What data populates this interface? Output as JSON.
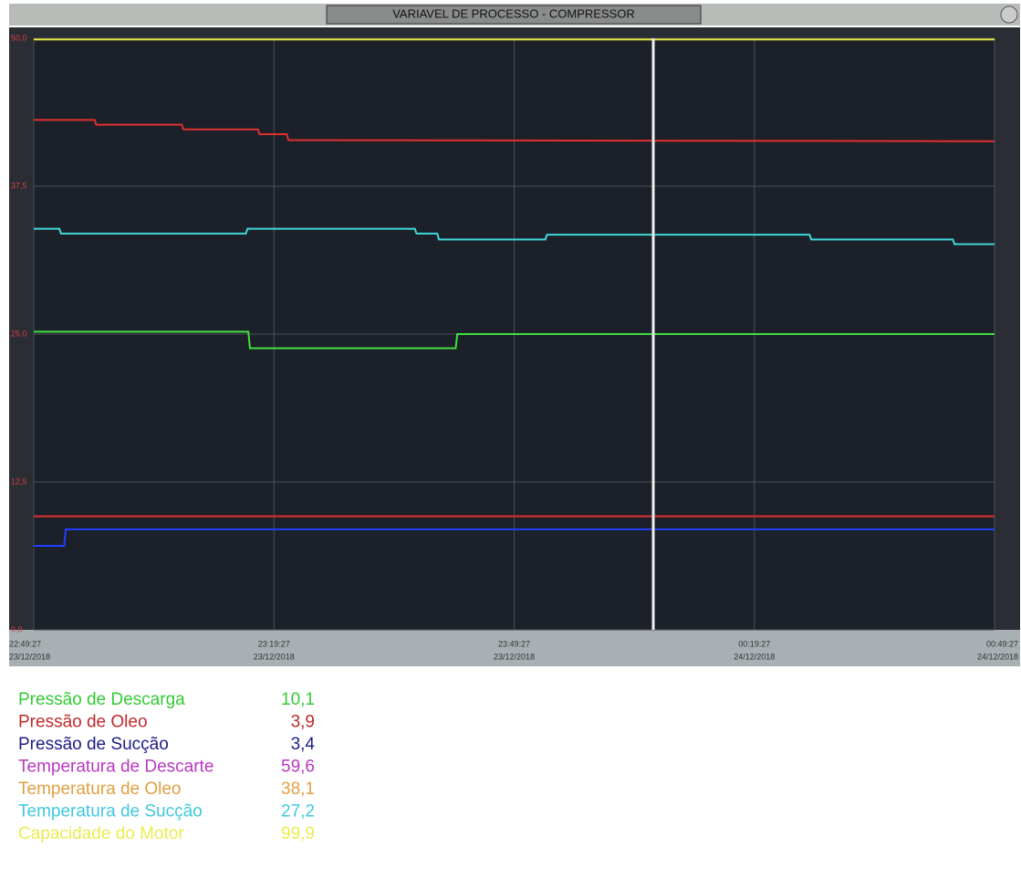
{
  "chart_data": {
    "type": "line",
    "title": "VARIAVEL DE PROCESSO - COMPRESSOR",
    "xlim": [
      0,
      120
    ],
    "ylim": [
      0,
      50
    ],
    "xticks": [
      {
        "value": 0,
        "label": "22:49:27",
        "date": "23/12/2018"
      },
      {
        "value": 30,
        "label": "23:19:27",
        "date": "23/12/2018"
      },
      {
        "value": 60,
        "label": "23:49:27",
        "date": "23/12/2018"
      },
      {
        "value": 90,
        "label": "00:19:27",
        "date": "24/12/2018"
      },
      {
        "value": 120,
        "label": "00:49:27",
        "date": "24/12/2018"
      }
    ],
    "yticks": [
      {
        "value": 0,
        "label": "0,0"
      },
      {
        "value": 12.5,
        "label": "12,5"
      },
      {
        "value": 25,
        "label": "25,0"
      },
      {
        "value": 37.5,
        "label": "37,5"
      },
      {
        "value": 50,
        "label": "50,0"
      }
    ],
    "grid": true,
    "series": [
      {
        "color": "#e8e840",
        "x": [
          0,
          120
        ],
        "values": [
          49.9,
          49.9
        ]
      },
      {
        "color": "#e03030",
        "x": [
          0,
          7.6,
          7.8,
          18.5,
          18.7,
          28,
          28.2,
          31.6,
          31.8,
          120
        ],
        "values": [
          43.1,
          43.1,
          42.7,
          42.7,
          42.3,
          42.3,
          41.9,
          41.9,
          41.4,
          41.3
        ]
      },
      {
        "color": "#40d8d8",
        "x": [
          0,
          3.2,
          3.4,
          26.5,
          26.7,
          47.6,
          47.8,
          50.4,
          50.6,
          63.9,
          64.1,
          96.9,
          97.1,
          114.8,
          115,
          120
        ],
        "values": [
          33.9,
          33.9,
          33.5,
          33.5,
          33.9,
          33.9,
          33.5,
          33.5,
          33.0,
          33.0,
          33.4,
          33.4,
          33.0,
          33.0,
          32.6,
          32.6
        ]
      },
      {
        "color": "#40e040",
        "x": [
          0,
          26.8,
          27,
          52.7,
          52.9,
          120
        ],
        "values": [
          25.2,
          25.2,
          23.8,
          23.8,
          25.0,
          25.0
        ]
      },
      {
        "color": "#e03030",
        "x": [
          0,
          120
        ],
        "values": [
          9.6,
          9.6
        ]
      },
      {
        "color": "#2040ff",
        "x": [
          0,
          3.8,
          4,
          120
        ],
        "values": [
          7.1,
          7.1,
          8.5,
          8.5
        ]
      }
    ]
  },
  "readout": [
    {
      "name": "Pressão de Descarga",
      "color": "#34c934",
      "value": 10.1,
      "label": "10,1"
    },
    {
      "name": "Pressão de Oleo",
      "color": "#c0282a",
      "value": 3.9,
      "label": "3,9"
    },
    {
      "name": "Pressão de Sucção",
      "color": "#1c1c88",
      "value": 3.4,
      "label": "3,4"
    },
    {
      "name": "Temperatura de Descarte",
      "color": "#b838c0",
      "value": 59.6,
      "label": "59,6"
    },
    {
      "name": "Temperatura de Oleo",
      "color": "#e0a040",
      "value": 38.1,
      "label": "38,1"
    },
    {
      "name": "Temperatura de Sucção",
      "color": "#40c8e0",
      "value": 27.2,
      "label": "27,2"
    },
    {
      "name": "Capacidade do Motor",
      "color": "#ecec50",
      "value": 99.9,
      "label": "99,9"
    }
  ]
}
